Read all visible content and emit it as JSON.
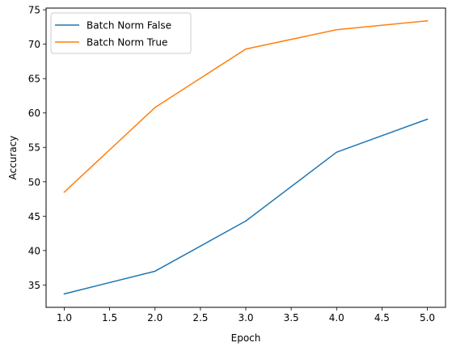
{
  "chart_data": {
    "type": "line",
    "title": "",
    "xlabel": "Epoch",
    "ylabel": "Accuracy",
    "xlim": [
      0.8,
      5.2
    ],
    "ylim": [
      31.75,
      75.25
    ],
    "xticks": [
      1.0,
      1.5,
      2.0,
      2.5,
      3.0,
      3.5,
      4.0,
      4.5,
      5.0
    ],
    "xtick_labels": [
      "1.0",
      "1.5",
      "2.0",
      "2.5",
      "3.0",
      "3.5",
      "4.0",
      "4.5",
      "5.0"
    ],
    "yticks": [
      35,
      40,
      45,
      50,
      55,
      60,
      65,
      70,
      75
    ],
    "ytick_labels": [
      "35",
      "40",
      "45",
      "50",
      "55",
      "60",
      "65",
      "70",
      "75"
    ],
    "grid": false,
    "legend_position": "top-left",
    "x": [
      1,
      2,
      3,
      4,
      5
    ],
    "series": [
      {
        "name": "Batch Norm False",
        "color": "#1f77b4",
        "values": [
          33.7,
          37.0,
          44.3,
          54.3,
          59.1
        ]
      },
      {
        "name": "Batch Norm True",
        "color": "#ff7f0e",
        "values": [
          48.5,
          60.8,
          69.3,
          72.1,
          73.4
        ]
      }
    ]
  }
}
